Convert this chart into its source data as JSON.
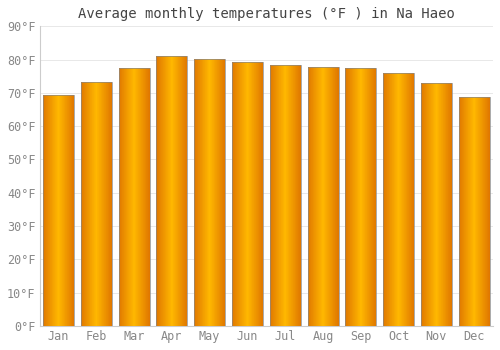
{
  "title": "Average monthly temperatures (°F ) in Na Haeo",
  "months": [
    "Jan",
    "Feb",
    "Mar",
    "Apr",
    "May",
    "Jun",
    "Jul",
    "Aug",
    "Sep",
    "Oct",
    "Nov",
    "Dec"
  ],
  "values": [
    69.4,
    73.2,
    77.4,
    81.0,
    80.2,
    79.2,
    78.5,
    77.9,
    77.5,
    76.1,
    72.9,
    68.9
  ],
  "bar_color_center": "#FFB800",
  "bar_color_edge": "#E07800",
  "ylim": [
    0,
    90
  ],
  "yticks": [
    0,
    10,
    20,
    30,
    40,
    50,
    60,
    70,
    80,
    90
  ],
  "ytick_labels": [
    "0°F",
    "10°F",
    "20°F",
    "30°F",
    "40°F",
    "50°F",
    "60°F",
    "70°F",
    "80°F",
    "90°F"
  ],
  "background_color": "#FFFFFF",
  "grid_color": "#E8E8E8",
  "title_fontsize": 10,
  "tick_fontsize": 8.5,
  "font_family": "monospace",
  "bar_width": 0.82
}
